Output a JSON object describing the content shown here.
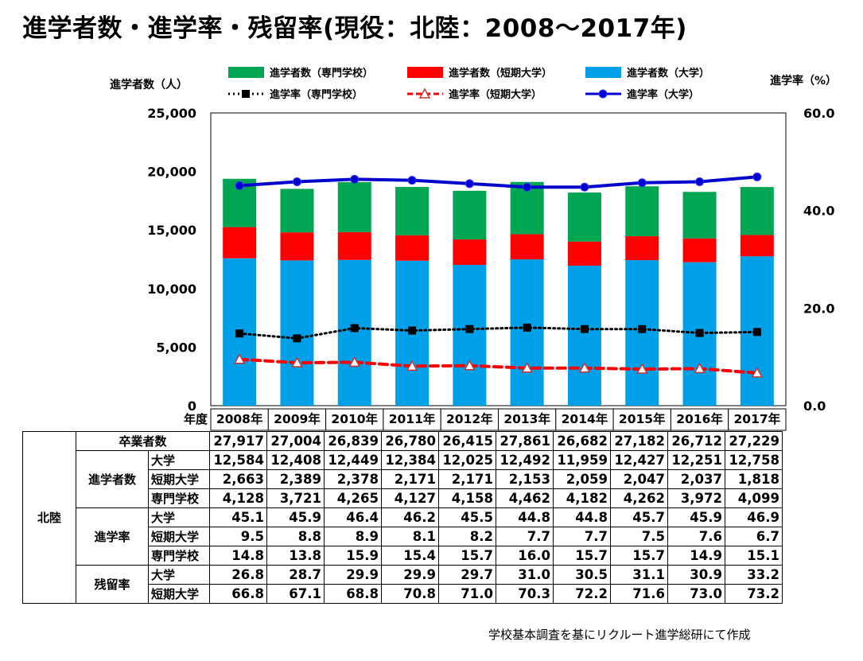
{
  "title": "進学者数・進学率・残留率(現役：北陸：2008～2017年)",
  "left_axis_label": "進学者数（人）",
  "right_axis_label": "進学率（%）",
  "footnote": "学校基本調査を基にリクルート進学総研にて作成",
  "colors": {
    "univ": "#00A0E9",
    "junior": "#FF0000",
    "vocational": "#00A651",
    "univ_rate": "#0000CC",
    "junior_rate": "#FF0000",
    "vocational_rate": "#000000"
  },
  "chart_data": {
    "type": "bar",
    "stacked": true,
    "categories": [
      "2008年",
      "2009年",
      "2010年",
      "2011年",
      "2012年",
      "2013年",
      "2014年",
      "2015年",
      "2016年",
      "2017年"
    ],
    "left_axis": {
      "min": 0,
      "max": 25000,
      "ticks": [
        "0",
        "5,000",
        "10,000",
        "15,000",
        "20,000",
        "25,000"
      ],
      "tick_values": [
        0,
        5000,
        10000,
        15000,
        20000,
        25000
      ]
    },
    "right_axis": {
      "min": 0,
      "max": 60,
      "ticks": [
        "0.0",
        "20.0",
        "40.0",
        "60.0"
      ],
      "tick_values": [
        0,
        20,
        40,
        60
      ]
    },
    "x_axis_label": "年度",
    "series": [
      {
        "name": "進学者数（大学）",
        "kind": "bar",
        "axis": "left",
        "color": "#00A0E9",
        "values": [
          12584,
          12408,
          12449,
          12384,
          12025,
          12492,
          11959,
          12427,
          12251,
          12758
        ]
      },
      {
        "name": "進学者数（短期大学）",
        "kind": "bar",
        "axis": "left",
        "color": "#FF0000",
        "values": [
          2663,
          2389,
          2378,
          2171,
          2171,
          2153,
          2059,
          2047,
          2037,
          1818
        ]
      },
      {
        "name": "進学者数（専門学校）",
        "kind": "bar",
        "axis": "left",
        "color": "#00A651",
        "values": [
          4128,
          3721,
          4265,
          4127,
          4158,
          4462,
          4182,
          4262,
          3972,
          4099
        ]
      },
      {
        "name": "進学率（専門学校）",
        "kind": "line",
        "axis": "right",
        "color": "#000000",
        "style": "dotted",
        "marker": "square",
        "values": [
          14.8,
          13.8,
          15.9,
          15.4,
          15.7,
          16.0,
          15.7,
          15.7,
          14.9,
          15.1
        ]
      },
      {
        "name": "進学率（短期大学）",
        "kind": "line",
        "axis": "right",
        "color": "#FF0000",
        "style": "dashed",
        "marker": "triangle",
        "values": [
          9.5,
          8.8,
          8.9,
          8.1,
          8.2,
          7.7,
          7.7,
          7.5,
          7.6,
          6.7
        ]
      },
      {
        "name": "進学率（大学）",
        "kind": "line",
        "axis": "right",
        "color": "#0000CC",
        "style": "solid",
        "marker": "circle",
        "values": [
          45.1,
          45.9,
          46.4,
          46.2,
          45.5,
          44.8,
          44.8,
          45.7,
          45.9,
          46.9
        ]
      }
    ],
    "legend": {
      "position": "top",
      "bar_order": [
        2,
        1,
        0
      ],
      "line_order": [
        3,
        4,
        5
      ]
    }
  },
  "table": {
    "region": "北陸",
    "graduates_label": "卒業者数",
    "graduates": [
      "27,917",
      "27,004",
      "26,839",
      "26,780",
      "26,415",
      "27,861",
      "26,682",
      "27,182",
      "26,712",
      "27,229"
    ],
    "groups": [
      {
        "label": "進学者数",
        "rows": [
          {
            "label": "大学",
            "values": [
              "12,584",
              "12,408",
              "12,449",
              "12,384",
              "12,025",
              "12,492",
              "11,959",
              "12,427",
              "12,251",
              "12,758"
            ]
          },
          {
            "label": "短期大学",
            "values": [
              "2,663",
              "2,389",
              "2,378",
              "2,171",
              "2,171",
              "2,153",
              "2,059",
              "2,047",
              "2,037",
              "1,818"
            ]
          },
          {
            "label": "専門学校",
            "values": [
              "4,128",
              "3,721",
              "4,265",
              "4,127",
              "4,158",
              "4,462",
              "4,182",
              "4,262",
              "3,972",
              "4,099"
            ]
          }
        ]
      },
      {
        "label": "進学率",
        "rows": [
          {
            "label": "大学",
            "values": [
              "45.1",
              "45.9",
              "46.4",
              "46.2",
              "45.5",
              "44.8",
              "44.8",
              "45.7",
              "45.9",
              "46.9"
            ]
          },
          {
            "label": "短期大学",
            "values": [
              "9.5",
              "8.8",
              "8.9",
              "8.1",
              "8.2",
              "7.7",
              "7.7",
              "7.5",
              "7.6",
              "6.7"
            ]
          },
          {
            "label": "専門学校",
            "values": [
              "14.8",
              "13.8",
              "15.9",
              "15.4",
              "15.7",
              "16.0",
              "15.7",
              "15.7",
              "14.9",
              "15.1"
            ]
          }
        ]
      },
      {
        "label": "残留率",
        "rows": [
          {
            "label": "大学",
            "values": [
              "26.8",
              "28.7",
              "29.9",
              "29.9",
              "29.7",
              "31.0",
              "30.5",
              "31.1",
              "30.9",
              "33.2"
            ]
          },
          {
            "label": "短期大学",
            "values": [
              "66.8",
              "67.1",
              "68.8",
              "70.8",
              "71.0",
              "70.3",
              "72.2",
              "71.6",
              "73.0",
              "73.2"
            ]
          }
        ]
      }
    ]
  }
}
